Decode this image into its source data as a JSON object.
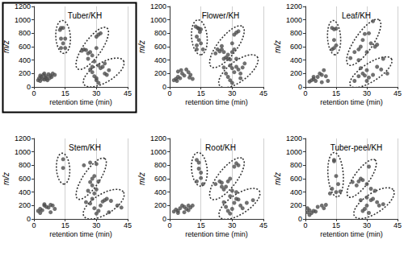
{
  "chart_data": [
    {
      "type": "scatter",
      "title": "Tuber/KH",
      "x_label": "retention time (min)",
      "y_label": "m/z",
      "xlim": [
        0,
        45
      ],
      "xticks": [
        0,
        15,
        30,
        45
      ],
      "ylim": [
        0,
        1200
      ],
      "yticks": [
        0,
        200,
        400,
        600,
        800,
        1000,
        1200
      ],
      "grid": true,
      "color": "#4d4d4d",
      "marker": "circle",
      "line_style": "dotted",
      "x": [
        2,
        2.5,
        3,
        3.5,
        4,
        4.5,
        5,
        5.5,
        6,
        6.5,
        7,
        7.5,
        8,
        8.5,
        9,
        10,
        3,
        5,
        6,
        12.5,
        13,
        14,
        13,
        15,
        13,
        15,
        14,
        23,
        24,
        25,
        26,
        27,
        26,
        28,
        29,
        30,
        31,
        32,
        28,
        30,
        27,
        28,
        29,
        30,
        30,
        31,
        32,
        33,
        34,
        35,
        34,
        31,
        36
      ],
      "values": [
        100,
        130,
        90,
        150,
        120,
        180,
        110,
        140,
        160,
        100,
        190,
        130,
        170,
        150,
        200,
        180,
        170,
        200,
        120,
        850,
        880,
        880,
        720,
        720,
        580,
        580,
        650,
        540,
        560,
        550,
        500,
        520,
        420,
        470,
        380,
        750,
        780,
        800,
        300,
        580,
        260,
        220,
        160,
        130,
        100,
        320,
        280,
        300,
        200,
        180,
        350,
        60,
        250
      ],
      "ellipses": [
        {
          "from": [
            13.5,
            990
          ],
          "to": [
            14.5,
            500
          ],
          "through": [
            10.5,
            745
          ]
        },
        {
          "from": [
            21,
            270
          ],
          "to": [
            35,
            880
          ],
          "through": [
            22.8,
            575
          ]
        },
        {
          "from": [
            24,
            40
          ],
          "to": [
            43,
            390
          ],
          "through": [
            30.5,
            330
          ]
        }
      ]
    },
    {
      "type": "scatter",
      "title": "Flower/KH",
      "x_label": "retention time (min)",
      "y_label": "m/z",
      "xlim": [
        0,
        45
      ],
      "xticks": [
        0,
        15,
        30,
        45
      ],
      "ylim": [
        0,
        1200
      ],
      "yticks": [
        0,
        200,
        400,
        600,
        800,
        1000,
        1200
      ],
      "grid": true,
      "color": "#4d4d4d",
      "marker": "circle",
      "line_style": "dotted",
      "x": [
        2,
        3,
        3.5,
        4,
        5,
        6,
        7,
        8,
        9,
        10,
        11,
        4,
        5.5,
        9.5,
        12.5,
        13.5,
        14,
        15,
        13,
        14,
        15,
        16,
        13,
        14.5,
        13,
        22,
        23,
        24,
        25,
        26,
        27,
        28,
        29,
        30,
        31,
        32,
        33,
        30,
        31,
        25,
        26,
        27,
        28,
        29,
        30,
        30,
        31,
        32,
        33,
        34,
        35,
        36,
        29,
        32,
        28,
        34,
        26
      ],
      "values": [
        100,
        120,
        90,
        150,
        130,
        200,
        170,
        260,
        220,
        180,
        120,
        230,
        250,
        140,
        900,
        880,
        870,
        860,
        750,
        700,
        650,
        560,
        560,
        820,
        620,
        500,
        560,
        530,
        560,
        520,
        440,
        480,
        410,
        520,
        780,
        810,
        830,
        650,
        560,
        610,
        290,
        200,
        150,
        100,
        60,
        280,
        220,
        300,
        260,
        200,
        290,
        350,
        320,
        420,
        420,
        130,
        420
      ],
      "ellipses": [
        {
          "from": [
            13.5,
            1000
          ],
          "to": [
            15,
            480
          ],
          "through": [
            10.5,
            740
          ]
        },
        {
          "from": [
            20,
            300
          ],
          "to": [
            35,
            900
          ],
          "through": [
            21.8,
            600
          ]
        },
        {
          "from": [
            24,
            20
          ],
          "to": [
            42,
            450
          ],
          "through": [
            29.5,
            340
          ]
        }
      ]
    },
    {
      "type": "scatter",
      "title": "Leaf/KH",
      "x_label": "retention time (min)",
      "y_label": "m/z",
      "xlim": [
        0,
        45
      ],
      "xticks": [
        0,
        15,
        30,
        45
      ],
      "ylim": [
        0,
        1200
      ],
      "yticks": [
        0,
        200,
        400,
        600,
        800,
        1000,
        1200
      ],
      "grid": true,
      "color": "#4d4d4d",
      "marker": "circle",
      "line_style": "dotted",
      "x": [
        2,
        3,
        4,
        5,
        6,
        7,
        8,
        9,
        10,
        11,
        4,
        8,
        13,
        14,
        14,
        15,
        13,
        14,
        15,
        22,
        24,
        26,
        27,
        28,
        29,
        31,
        33,
        34,
        35,
        30,
        32,
        26,
        24,
        26,
        27,
        28,
        29,
        30,
        31,
        33,
        35,
        37,
        40,
        30,
        38
      ],
      "values": [
        80,
        100,
        120,
        90,
        150,
        200,
        180,
        250,
        160,
        90,
        150,
        70,
        880,
        860,
        700,
        870,
        560,
        580,
        620,
        430,
        520,
        560,
        600,
        700,
        790,
        800,
        980,
        600,
        630,
        520,
        650,
        400,
        90,
        160,
        280,
        200,
        170,
        250,
        140,
        180,
        300,
        260,
        200,
        90,
        420
      ],
      "ellipses": [
        {
          "from": [
            13.5,
            990
          ],
          "to": [
            14.5,
            480
          ],
          "through": [
            10.8,
            735
          ]
        },
        {
          "from": [
            21,
            330
          ],
          "to": [
            36,
            1000
          ],
          "through": [
            23,
            660
          ]
        },
        {
          "from": [
            22,
            20
          ],
          "to": [
            42,
            420
          ],
          "through": [
            28.5,
            310
          ]
        }
      ]
    },
    {
      "type": "scatter",
      "title": "Stem/KH",
      "x_label": "retention time (min)",
      "y_label": "m/z",
      "xlim": [
        0,
        45
      ],
      "xticks": [
        0,
        15,
        30,
        45
      ],
      "ylim": [
        0,
        1200
      ],
      "yticks": [
        0,
        200,
        400,
        600,
        800,
        1000,
        1200
      ],
      "grid": true,
      "color": "#4d4d4d",
      "marker": "circle",
      "line_style": "dotted",
      "x": [
        2,
        3,
        4,
        5,
        6,
        7,
        8,
        9,
        10,
        3,
        5,
        8,
        14,
        14,
        24,
        27,
        28,
        29,
        30,
        28,
        27,
        30,
        26,
        31,
        29,
        25,
        27,
        28,
        29,
        31,
        32,
        33,
        34,
        35,
        37,
        30,
        40,
        42,
        36
      ],
      "values": [
        120,
        150,
        130,
        200,
        180,
        170,
        210,
        200,
        150,
        90,
        220,
        100,
        890,
        760,
        800,
        840,
        600,
        640,
        820,
        500,
        550,
        440,
        420,
        560,
        380,
        250,
        230,
        300,
        160,
        120,
        200,
        260,
        280,
        300,
        270,
        80,
        200,
        170,
        100
      ],
      "ellipses": [
        {
          "from": [
            13.5,
            980
          ],
          "to": [
            14.5,
            520
          ],
          "through": [
            10.8,
            750
          ]
        },
        {
          "from": [
            21,
            300
          ],
          "to": [
            34,
            900
          ],
          "through": [
            22.8,
            600
          ]
        },
        {
          "from": [
            24,
            40
          ],
          "to": [
            43,
            400
          ],
          "through": [
            30.5,
            340
          ]
        }
      ]
    },
    {
      "type": "scatter",
      "title": "Root/KH",
      "x_label": "retention time (min)",
      "y_label": "m/z",
      "xlim": [
        0,
        45
      ],
      "xticks": [
        0,
        15,
        30,
        45
      ],
      "ylim": [
        0,
        1200
      ],
      "yticks": [
        0,
        200,
        400,
        600,
        800,
        1000,
        1200
      ],
      "grid": true,
      "color": "#4d4d4d",
      "marker": "circle",
      "line_style": "dotted",
      "x": [
        2,
        3,
        4,
        5,
        6,
        7,
        8,
        9,
        10,
        11,
        4,
        7,
        9,
        13,
        14,
        14,
        15,
        13,
        15,
        16,
        22,
        24,
        25,
        26,
        27,
        28,
        30,
        31,
        32,
        33,
        29,
        25,
        26,
        27,
        28,
        29,
        30,
        31,
        32,
        33,
        34,
        35,
        37,
        29,
        40,
        32
      ],
      "values": [
        110,
        140,
        120,
        160,
        200,
        180,
        150,
        130,
        170,
        200,
        90,
        100,
        200,
        880,
        840,
        750,
        690,
        560,
        610,
        520,
        520,
        560,
        540,
        440,
        480,
        560,
        420,
        780,
        830,
        800,
        600,
        480,
        250,
        180,
        120,
        80,
        150,
        240,
        300,
        290,
        200,
        160,
        240,
        340,
        280,
        400
      ],
      "ellipses": [
        {
          "from": [
            13.5,
            990
          ],
          "to": [
            15,
            490
          ],
          "through": [
            10.5,
            740
          ]
        },
        {
          "from": [
            20,
            300
          ],
          "to": [
            35,
            900
          ],
          "through": [
            21.8,
            600
          ]
        },
        {
          "from": [
            24,
            30
          ],
          "to": [
            43,
            420
          ],
          "through": [
            30.5,
            340
          ]
        }
      ]
    },
    {
      "type": "scatter",
      "title": "Tuber-peel/KH",
      "x_label": "retention time (min)",
      "y_label": "m/z",
      "xlim": [
        0,
        45
      ],
      "xticks": [
        0,
        15,
        30,
        45
      ],
      "ylim": [
        0,
        1200
      ],
      "yticks": [
        0,
        200,
        400,
        600,
        800,
        1000,
        1200
      ],
      "grid": true,
      "color": "#4d4d4d",
      "marker": "circle",
      "line_style": "dotted",
      "x": [
        1,
        2,
        3,
        4,
        5,
        6,
        8,
        9,
        10,
        1,
        2,
        12,
        14,
        14,
        15,
        13,
        16,
        17,
        15,
        23,
        26,
        27,
        28,
        30,
        31,
        32,
        25,
        27,
        28,
        29,
        30,
        31,
        32,
        33,
        35,
        36,
        38,
        30,
        34
      ],
      "values": [
        100,
        130,
        90,
        120,
        110,
        180,
        200,
        160,
        210,
        160,
        60,
        380,
        880,
        860,
        640,
        450,
        520,
        410,
        400,
        550,
        560,
        600,
        580,
        520,
        780,
        450,
        500,
        280,
        120,
        150,
        320,
        90,
        280,
        300,
        250,
        200,
        220,
        200,
        420
      ],
      "ellipses": [
        {
          "from": [
            14,
            990
          ],
          "to": [
            15.5,
            330
          ],
          "through": [
            11,
            660
          ]
        },
        {
          "from": [
            21,
            330
          ],
          "to": [
            34,
            880
          ],
          "through": [
            22.8,
            600
          ]
        },
        {
          "from": [
            24,
            40
          ],
          "to": [
            43,
            430
          ],
          "through": [
            30.5,
            350
          ]
        }
      ]
    }
  ]
}
